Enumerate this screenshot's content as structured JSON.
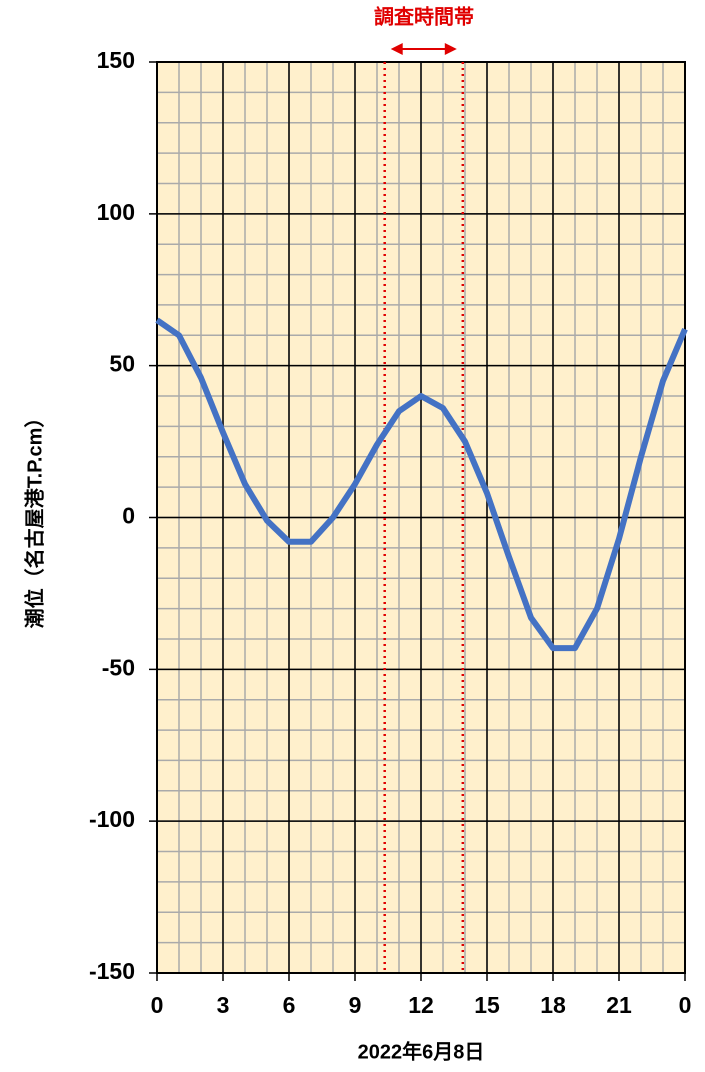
{
  "chart_data": {
    "type": "line",
    "annotation": "調査時間帯",
    "xlabel": "2022年6月8日",
    "ylabel": "潮位（名古屋港T.P.cm）",
    "x": [
      0,
      1,
      2,
      3,
      4,
      5,
      6,
      7,
      8,
      9,
      10,
      11,
      12,
      13,
      14,
      15,
      16,
      17,
      18,
      19,
      20,
      21,
      22,
      23,
      24
    ],
    "series": [
      {
        "color": "#4472c4",
        "values": [
          65,
          60,
          46,
          28,
          11,
          -1,
          -8,
          -8,
          0,
          11,
          24,
          35,
          40,
          36,
          25,
          8,
          -13,
          -33,
          -43,
          -43,
          -30,
          -7,
          20,
          45,
          62
        ]
      }
    ],
    "xlim": [
      0,
      24
    ],
    "xticks": [
      0,
      3,
      6,
      9,
      12,
      15,
      18,
      21,
      {
        "value": 24,
        "label": "0"
      }
    ],
    "ylim": [
      -150,
      150
    ],
    "yticks": [
      -150,
      -100,
      -50,
      0,
      50,
      100,
      150
    ],
    "grid": true,
    "minor_grid": {
      "x": 1,
      "y": 10
    },
    "survey_band": {
      "values": [
        10.35,
        13.9
      ],
      "color": "#e00000"
    },
    "plot_background": "#fff0cc"
  }
}
